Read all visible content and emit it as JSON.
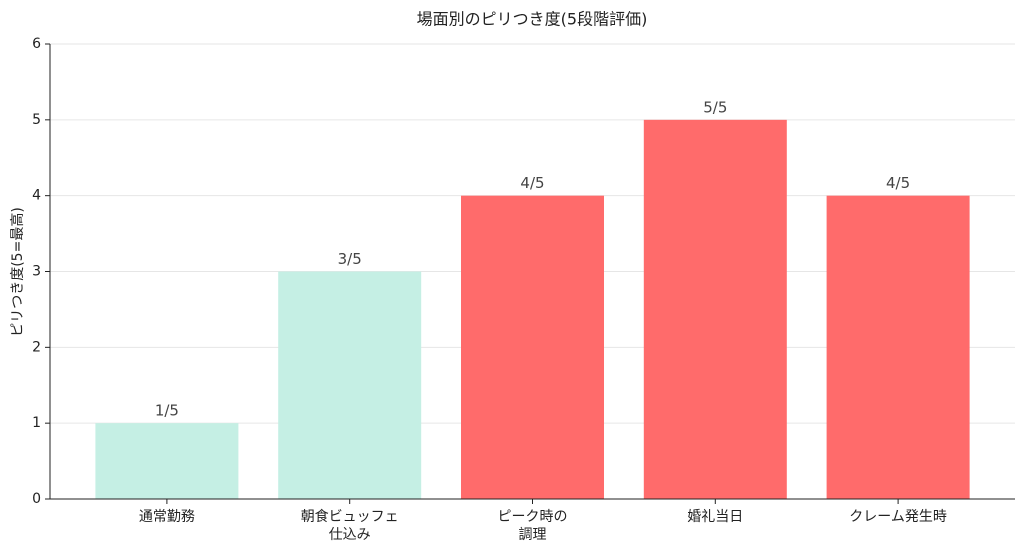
{
  "chart_data": {
    "type": "bar",
    "title": "場面別のピリつき度(5段階評価)",
    "y_label": "ピリつき度(5=最高)",
    "categories": [
      "通常勤務",
      "朝食ビュッフェ\n仕込み",
      "ピーク時の\n調理",
      "婚礼当日",
      "クレーム発生時"
    ],
    "values": [
      1,
      3,
      4,
      5,
      4
    ],
    "value_labels": [
      "1/5",
      "3/5",
      "4/5",
      "5/5",
      "4/5"
    ],
    "colors": [
      "#c5efe4",
      "#c5efe4",
      "#ff6b6b",
      "#ff6b6b",
      "#ff6b6b"
    ],
    "ylim": [
      0,
      6
    ],
    "yticks": [
      0,
      1,
      2,
      3,
      4,
      5,
      6
    ],
    "grid": true
  }
}
